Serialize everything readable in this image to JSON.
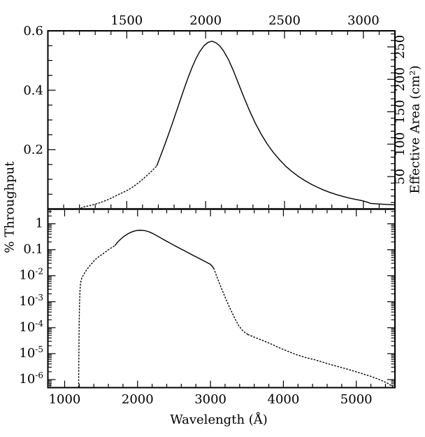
{
  "chart_data": {
    "type": "line",
    "title": "",
    "x_label": "Wavelength (Å)",
    "y_label": "% Throughput",
    "y2_label": "Effective Area (cm²)",
    "colors": {
      "background": "#ffffff",
      "line": "#000000",
      "text": "#000000"
    },
    "legend": "none",
    "grid": false,
    "axes": {
      "top_x": {
        "min": 1000,
        "max": 3200,
        "minor_step": 100,
        "major_values": [
          1500,
          2000,
          2500,
          3000
        ],
        "labels": [
          {
            "v": 1500,
            "t": "1500"
          },
          {
            "v": 2000,
            "t": "2000"
          },
          {
            "v": 2500,
            "t": "2500"
          },
          {
            "v": 3000,
            "t": "3000"
          }
        ]
      },
      "bottom_x": {
        "min": 770,
        "max": 5530,
        "minor_step": 200,
        "major_values": [
          1000,
          2000,
          3000,
          4000,
          5000
        ],
        "labels": [
          {
            "v": 1000,
            "t": "1000"
          },
          {
            "v": 2000,
            "t": "2000"
          },
          {
            "v": 3000,
            "t": "3000"
          },
          {
            "v": 4000,
            "t": "4000"
          },
          {
            "v": 5000,
            "t": "5000"
          }
        ]
      },
      "top_y": {
        "min": 0,
        "max": 0.6,
        "minor_step": 0.05,
        "major_values": [
          0.2,
          0.4,
          0.6
        ],
        "labels": [
          {
            "v": 0.2,
            "t": "0.2"
          },
          {
            "v": 0.4,
            "t": "0.4"
          },
          {
            "v": 0.6,
            "t": "0.6"
          }
        ]
      },
      "right_y": {
        "min": 0,
        "max": 274.8,
        "minor_step": 10,
        "major_values": [
          50,
          100,
          150,
          200,
          250
        ],
        "labels": [
          {
            "v": 50,
            "t": "50"
          },
          {
            "v": 100,
            "t": "100"
          },
          {
            "v": 150,
            "t": "150"
          },
          {
            "v": 200,
            "t": "200"
          },
          {
            "v": 250,
            "t": "250"
          }
        ]
      },
      "bottom_y_log": {
        "max_exp": 0.568,
        "min_exp": -6.31,
        "major_exps": [
          0,
          -1,
          -2,
          -3,
          -4,
          -5,
          -6
        ],
        "labels": [
          {
            "exp": 0,
            "t": "1"
          },
          {
            "exp": -1,
            "t": "0.1"
          },
          {
            "exp": -2,
            "t": "10",
            "sup": "-2"
          },
          {
            "exp": -3,
            "t": "10",
            "sup": "-3"
          },
          {
            "exp": -4,
            "t": "10",
            "sup": "-4"
          },
          {
            "exp": -5,
            "t": "10",
            "sup": "-5"
          },
          {
            "exp": -6,
            "t": "10",
            "sup": "-6"
          }
        ]
      }
    },
    "series": [
      {
        "id": "uv-rise-dotted",
        "style": "dotted",
        "panels": [
          "top",
          "bottom"
        ],
        "points": [
          [
            1192,
            4e-07
          ],
          [
            1193,
            1.5e-06
          ],
          [
            1195,
            8e-06
          ],
          [
            1197,
            4e-05
          ],
          [
            1200,
            0.0002
          ],
          [
            1204,
            0.0008
          ],
          [
            1209,
            0.0022
          ],
          [
            1216,
            0.0045
          ],
          [
            1226,
            0.0068
          ],
          [
            1238,
            0.0086
          ],
          [
            1252,
            0.01
          ],
          [
            1268,
            0.012
          ],
          [
            1286,
            0.0145
          ],
          [
            1306,
            0.0175
          ],
          [
            1328,
            0.021
          ],
          [
            1352,
            0.0255
          ],
          [
            1378,
            0.031
          ],
          [
            1406,
            0.038
          ],
          [
            1436,
            0.046
          ],
          [
            1468,
            0.054
          ],
          [
            1500,
            0.062
          ],
          [
            1532,
            0.072
          ],
          [
            1564,
            0.084
          ],
          [
            1596,
            0.098
          ],
          [
            1628,
            0.113
          ],
          [
            1660,
            0.129
          ],
          [
            1690,
            0.145
          ]
        ]
      },
      {
        "id": "main-solid",
        "style": "solid",
        "panels": [
          "top",
          "bottom"
        ],
        "points": [
          [
            1690,
            0.145
          ],
          [
            1715,
            0.18
          ],
          [
            1740,
            0.215
          ],
          [
            1765,
            0.252
          ],
          [
            1790,
            0.29
          ],
          [
            1815,
            0.329
          ],
          [
            1840,
            0.368
          ],
          [
            1865,
            0.407
          ],
          [
            1890,
            0.444
          ],
          [
            1915,
            0.478
          ],
          [
            1940,
            0.508
          ],
          [
            1965,
            0.532
          ],
          [
            1990,
            0.55
          ],
          [
            2015,
            0.561
          ],
          [
            2040,
            0.565
          ],
          [
            2065,
            0.56
          ],
          [
            2090,
            0.549
          ],
          [
            2115,
            0.531
          ],
          [
            2145,
            0.503
          ],
          [
            2175,
            0.467
          ],
          [
            2210,
            0.42
          ],
          [
            2245,
            0.373
          ],
          [
            2280,
            0.329
          ],
          [
            2315,
            0.289
          ],
          [
            2350,
            0.254
          ],
          [
            2390,
            0.219
          ],
          [
            2430,
            0.19
          ],
          [
            2470,
            0.165
          ],
          [
            2510,
            0.143
          ],
          [
            2550,
            0.125
          ],
          [
            2590,
            0.109
          ],
          [
            2630,
            0.0955
          ],
          [
            2670,
            0.0835
          ],
          [
            2710,
            0.073
          ],
          [
            2750,
            0.0635
          ],
          [
            2790,
            0.0555
          ],
          [
            2830,
            0.0485
          ],
          [
            2870,
            0.0425
          ],
          [
            2910,
            0.037
          ],
          [
            2950,
            0.0325
          ],
          [
            2990,
            0.0285
          ],
          [
            3020,
            0.024
          ],
          [
            3045,
            0.019
          ]
        ]
      },
      {
        "id": "top-tail-solid",
        "style": "solid",
        "panels": [
          "top"
        ],
        "points": [
          [
            3045,
            0.019
          ],
          [
            3100,
            0.017
          ],
          [
            3150,
            0.0155
          ],
          [
            3200,
            0.014
          ]
        ]
      },
      {
        "id": "red-cutoff-dotted",
        "style": "dotted",
        "panels": [
          "bottom"
        ],
        "points": [
          [
            3045,
            0.019
          ],
          [
            3080,
            0.0105
          ],
          [
            3115,
            0.0058
          ],
          [
            3150,
            0.0033
          ],
          [
            3185,
            0.0019
          ],
          [
            3220,
            0.0011
          ],
          [
            3260,
            0.00062
          ],
          [
            3300,
            0.00036
          ],
          [
            3340,
            0.00021
          ],
          [
            3380,
            0.00013
          ],
          [
            3425,
            8.6e-05
          ],
          [
            3470,
            6.6e-05
          ],
          [
            3515,
            5.4e-05
          ]
        ]
      },
      {
        "id": "red-tail-dotted",
        "style": "dotted",
        "panels": [
          "bottom"
        ],
        "points": [
          [
            3515,
            5.4e-05
          ],
          [
            3620,
            4.1e-05
          ],
          [
            3730,
            3.1e-05
          ],
          [
            3840,
            2.3e-05
          ],
          [
            3950,
            1.65e-05
          ],
          [
            4070,
            1.2e-05
          ],
          [
            4190,
            8.9e-06
          ],
          [
            4310,
            7e-06
          ],
          [
            4430,
            5.8e-06
          ],
          [
            4560,
            4.5e-06
          ],
          [
            4690,
            3.5e-06
          ],
          [
            4820,
            2.8e-06
          ],
          [
            4950,
            2.2e-06
          ],
          [
            5080,
            1.7e-06
          ],
          [
            5210,
            1.3e-06
          ],
          [
            5330,
            9.7e-07
          ],
          [
            5430,
            7.2e-07
          ],
          [
            5515,
            5e-07
          ]
        ]
      }
    ]
  }
}
